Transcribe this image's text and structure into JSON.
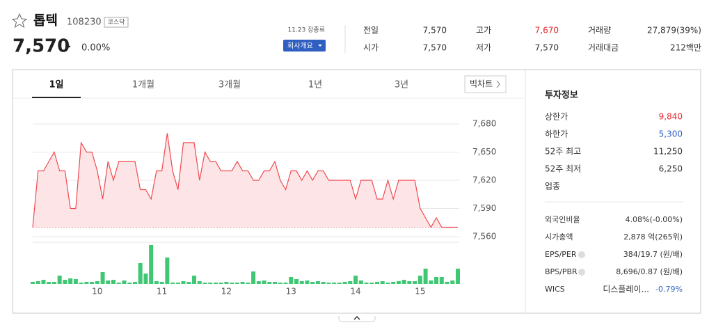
{
  "header": {
    "name": "톱텍",
    "code": "108230",
    "market": "코스닥",
    "price": "7,570",
    "change": "–",
    "change_rate": "0.00%",
    "status": "11.23 장종료",
    "company_button": "회사개요"
  },
  "summary": [
    [
      {
        "label": "전일",
        "value": "7,570"
      },
      {
        "label": "고가",
        "value": "7,670"
      },
      {
        "label": "거래량",
        "value": "27,879(39%)"
      }
    ],
    [
      {
        "label": "시가",
        "value": "7,570"
      },
      {
        "label": "저가",
        "value": "7,570"
      },
      {
        "label": "거래대금",
        "value": "212백만"
      }
    ]
  ],
  "tabs": [
    "1일",
    "1개월",
    "3개월",
    "1년",
    "3년"
  ],
  "big_chart": "빅차트",
  "chart_data": {
    "type": "line",
    "color": "#f0484f",
    "fill": "#fde5e7",
    "volume_color": "#3fc773",
    "values": [
      7570,
      7630,
      7630,
      7640,
      7650,
      7630,
      7630,
      7590,
      7590,
      7660,
      7650,
      7650,
      7630,
      7600,
      7640,
      7620,
      7640,
      7640,
      7640,
      7640,
      7610,
      7610,
      7600,
      7630,
      7630,
      7670,
      7630,
      7610,
      7660,
      7660,
      7660,
      7620,
      7650,
      7640,
      7640,
      7630,
      7630,
      7630,
      7640,
      7630,
      7630,
      7620,
      7620,
      7630,
      7630,
      7640,
      7620,
      7610,
      7630,
      7630,
      7620,
      7630,
      7620,
      7630,
      7630,
      7620,
      7620,
      7620,
      7620,
      7620,
      7600,
      7620,
      7620,
      7620,
      7600,
      7600,
      7620,
      7600,
      7620,
      7620,
      7620,
      7620,
      7590,
      7580,
      7570,
      7580,
      7570,
      7570,
      7570,
      7570
    ],
    "volume": [
      3,
      4,
      6,
      3,
      3,
      12,
      6,
      8,
      7,
      2,
      3,
      3,
      4,
      17,
      5,
      6,
      2,
      5,
      2,
      3,
      30,
      15,
      56,
      4,
      3,
      38,
      2,
      2,
      4,
      3,
      12,
      4,
      2,
      2,
      2,
      2,
      3,
      2,
      2,
      3,
      2,
      18,
      4,
      5,
      3,
      3,
      2,
      2,
      10,
      7,
      4,
      5,
      3,
      4,
      3,
      2,
      2,
      2,
      3,
      4,
      12,
      5,
      2,
      2,
      3,
      4,
      2,
      3,
      4,
      6,
      4,
      4,
      12,
      22,
      5,
      10,
      10,
      3,
      5,
      22
    ],
    "ylim": [
      7560,
      7680
    ],
    "yticks": [
      {
        "value": 7560,
        "label": "7,560"
      },
      {
        "value": 7590,
        "label": "7,590"
      },
      {
        "value": 7620,
        "label": "7,620"
      },
      {
        "value": 7650,
        "label": "7,650"
      },
      {
        "value": 7680,
        "label": "7,680"
      }
    ],
    "volume_ylim": [
      0,
      60
    ],
    "xticks": [
      {
        "value": 12,
        "label": "10"
      },
      {
        "value": 24,
        "label": "11"
      },
      {
        "value": 36,
        "label": "12"
      },
      {
        "value": 48,
        "label": "13"
      },
      {
        "value": 60,
        "label": "14"
      },
      {
        "value": 72,
        "label": "15"
      }
    ],
    "grid": true
  },
  "invest_info": {
    "title": "투자정보",
    "rows1": [
      {
        "label": "상한가",
        "value": "9,840"
      },
      {
        "label": "하한가",
        "value": "5,300"
      },
      {
        "label": "52주 최고",
        "value": "11,250"
      },
      {
        "label": "52주 최저",
        "value": "6,250"
      },
      {
        "label": "업종",
        "value": ""
      }
    ],
    "rows2": [
      {
        "label": "외국인비율",
        "value": "4.08%(-0.00%)"
      },
      {
        "label": "시가총액",
        "value": "2,878 억(265위)"
      },
      {
        "label": "EPS/PER",
        "value": "384/19.7 (원/배)"
      },
      {
        "label": "BPS/PBR",
        "value": "8,696/0.87 (원/배)"
      },
      {
        "label": "WICS",
        "value": "디스플레이...",
        "extra": "-0.79%"
      }
    ]
  }
}
